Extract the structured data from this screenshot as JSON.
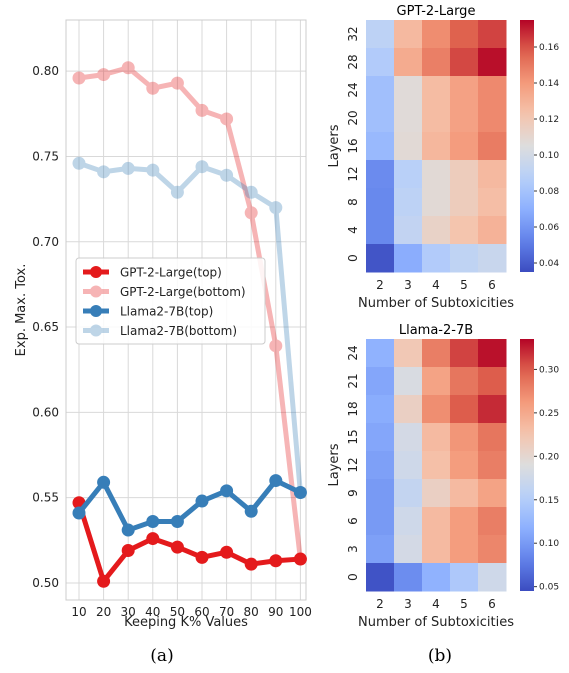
{
  "captions": {
    "a": "(a)",
    "b": "(b)"
  },
  "chart_data": [
    {
      "type": "line",
      "title": "",
      "xlabel": "Keeping K% Values",
      "ylabel": "Exp. Max. Tox.",
      "x": [
        10,
        20,
        30,
        40,
        50,
        60,
        70,
        80,
        90,
        100
      ],
      "xticks": [
        "10",
        "20",
        "30",
        "40",
        "50",
        "60",
        "70",
        "80",
        "90",
        "100"
      ],
      "ylim": [
        0.49,
        0.83
      ],
      "yticks": [
        0.5,
        0.55,
        0.6,
        0.65,
        0.7,
        0.75,
        0.8
      ],
      "ytick_labels": [
        "0.50",
        "0.55",
        "0.60",
        "0.65",
        "0.70",
        "0.75",
        "0.80"
      ],
      "grid": true,
      "legend_position": "center-left",
      "series": [
        {
          "name": "GPT-2-Large(top)",
          "color": "#e41a1c",
          "alpha": 1.0,
          "values": [
            0.547,
            0.501,
            0.519,
            0.526,
            0.521,
            0.515,
            0.518,
            0.511,
            0.513,
            0.514
          ]
        },
        {
          "name": "GPT-2-Large(bottom)",
          "color": "#e41a1c",
          "alpha": 0.32,
          "values": [
            0.796,
            0.798,
            0.802,
            0.79,
            0.793,
            0.777,
            0.772,
            0.717,
            0.639,
            0.514
          ]
        },
        {
          "name": "Llama2-7B(top)",
          "color": "#377eb8",
          "alpha": 1.0,
          "values": [
            0.541,
            0.559,
            0.531,
            0.536,
            0.536,
            0.548,
            0.554,
            0.542,
            0.56,
            0.553
          ]
        },
        {
          "name": "Llama2-7B(bottom)",
          "color": "#377eb8",
          "alpha": 0.32,
          "values": [
            0.746,
            0.741,
            0.743,
            0.742,
            0.729,
            0.744,
            0.739,
            0.729,
            0.72,
            0.553
          ]
        }
      ]
    },
    {
      "type": "heatmap",
      "title": "GPT-2-Large",
      "xlabel": "Number of Subtoxicities",
      "ylabel": "Layers",
      "x_labels": [
        "2",
        "3",
        "4",
        "5",
        "6"
      ],
      "y_labels_shown": [
        "32",
        "28",
        "24",
        "20",
        "16",
        "12",
        "8",
        "4",
        "0"
      ],
      "colormap": "coolwarm",
      "vmin": 0.035,
      "vmax": 0.175,
      "colorbar_ticks": [
        0.04,
        0.06,
        0.08,
        0.1,
        0.12,
        0.14,
        0.16
      ],
      "colorbar_labels": [
        "0.04",
        "0.06",
        "0.08",
        "0.10",
        "0.12",
        "0.14",
        "0.16"
      ],
      "rows_top_to_bottom": [
        [
          0.09,
          0.127,
          0.144,
          0.157,
          0.163
        ],
        [
          0.085,
          0.133,
          0.148,
          0.162,
          0.173
        ],
        [
          0.078,
          0.107,
          0.126,
          0.137,
          0.145
        ],
        [
          0.078,
          0.107,
          0.126,
          0.137,
          0.145
        ],
        [
          0.075,
          0.108,
          0.128,
          0.139,
          0.149
        ],
        [
          0.056,
          0.088,
          0.108,
          0.117,
          0.127
        ],
        [
          0.055,
          0.09,
          0.108,
          0.117,
          0.125
        ],
        [
          0.055,
          0.092,
          0.113,
          0.122,
          0.13
        ],
        [
          0.038,
          0.069,
          0.085,
          0.091,
          0.095
        ]
      ]
    },
    {
      "type": "heatmap",
      "title": "Llama-2-7B",
      "xlabel": "Number of Subtoxicities",
      "ylabel": "Layers",
      "x_labels": [
        "2",
        "3",
        "4",
        "5",
        "6"
      ],
      "y_labels_shown": [
        "24",
        "21",
        "18",
        "15",
        "12",
        "9",
        "6",
        "3",
        "0"
      ],
      "colormap": "coolwarm",
      "vmin": 0.045,
      "vmax": 0.335,
      "colorbar_ticks": [
        0.05,
        0.1,
        0.15,
        0.2,
        0.25,
        0.3
      ],
      "colorbar_labels": [
        "0.05",
        "0.10",
        "0.15",
        "0.20",
        "0.25",
        "0.30"
      ],
      "rows_top_to_bottom": [
        [
          0.12,
          0.22,
          0.28,
          0.31,
          0.33
        ],
        [
          0.11,
          0.185,
          0.255,
          0.285,
          0.3
        ],
        [
          0.115,
          0.21,
          0.27,
          0.3,
          0.32
        ],
        [
          0.11,
          0.18,
          0.235,
          0.265,
          0.285
        ],
        [
          0.105,
          0.175,
          0.23,
          0.26,
          0.28
        ],
        [
          0.1,
          0.165,
          0.21,
          0.235,
          0.255
        ],
        [
          0.1,
          0.175,
          0.235,
          0.26,
          0.28
        ],
        [
          0.105,
          0.18,
          0.235,
          0.26,
          0.275
        ],
        [
          0.05,
          0.09,
          0.12,
          0.145,
          0.175
        ]
      ]
    }
  ]
}
